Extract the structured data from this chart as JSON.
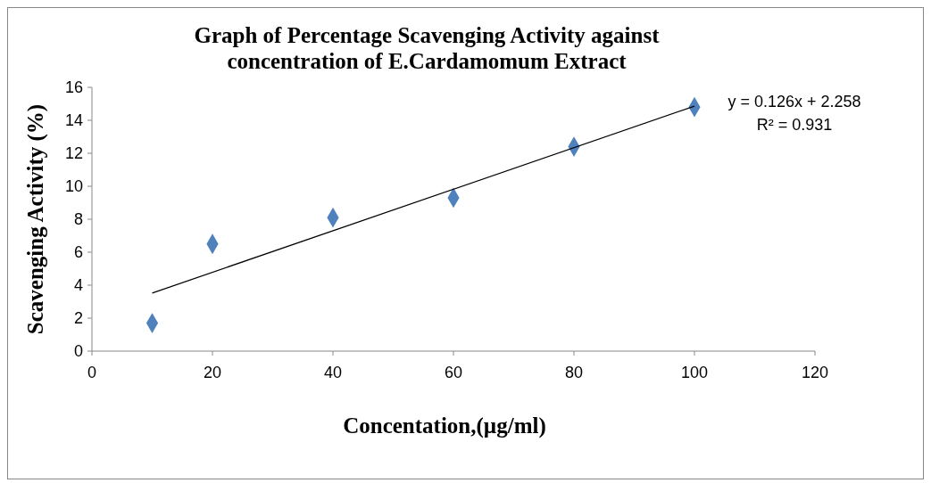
{
  "chart_data": {
    "type": "scatter",
    "title": "Graph of Percentage Scavenging Activity against\nconcentration of E.Cardamomum Extract",
    "xlabel": "Concentation,(µg/ml)",
    "ylabel": "Scavenging Activity (%)",
    "x": [
      10,
      20,
      40,
      60,
      80,
      100
    ],
    "series": [
      {
        "color": "#4f81bd",
        "marker": "diamond",
        "values": [
          1.7,
          6.5,
          8.1,
          9.3,
          12.4,
          14.8
        ]
      },
      {
        "type": "line",
        "color": "#000000",
        "marker": "none",
        "x": [
          10,
          100
        ],
        "values": [
          3.52,
          14.86
        ]
      }
    ],
    "annotations": [
      "y = 0.126x + 2.258",
      "R² = 0.931"
    ],
    "xlim": [
      0,
      120
    ],
    "xticks": [
      0,
      20,
      40,
      60,
      80,
      100,
      120
    ],
    "ylim": [
      0,
      16
    ],
    "yticks": [
      0,
      2,
      4,
      6,
      8,
      10,
      12,
      14,
      16
    ],
    "grid": false
  }
}
